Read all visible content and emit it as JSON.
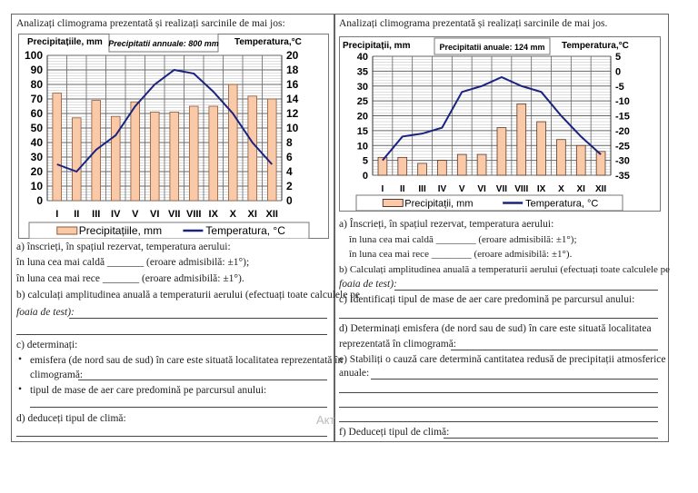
{
  "left": {
    "title": "Analizați climograma prezentată și realizați sarcinile de mai jos:",
    "a_intro": "a) înscrieți, în spațiul rezervat, temperatura aerului:",
    "a_warm": "în luna cea mai caldă _______ (eroare admisibilă: ±1°);",
    "a_cold": "în luna cea mai rece    _______ (eroare admisibilă: ±1°).",
    "b_1": "b) calculați amplitudinea anuală a temperaturii aerului (efectuați toate calculele pe",
    "b_2": "foaia de test):",
    "c_intro": "c) determinați:",
    "c_b1_1": "emisfera (de nord sau de sud) în care este situată localitatea reprezentată în",
    "c_b1_2": "climogramă:",
    "c_b2": "tipul de mase de aer care predomină pe parcursul anului:",
    "d": "d) deduceți tipul de climă:",
    "watermark": "Акт"
  },
  "right": {
    "title": "Analizați climograma prezentată și realizați sarcinile de mai jos.",
    "a_intro": "a) Înscrieți, în spațiul rezervat, temperatura aerului:",
    "a_warm": "în luna cea mai caldă ________ (eroare admisibilă: ±1°);",
    "a_cold": "în luna cea mai rece    ________ (eroare admisibilă: ±1°).",
    "b_1": "b) Calculați amplitudinea anuală a temperaturii aerului (efectuați toate calculele pe",
    "b_2": "foaia de test):",
    "c": "c) Identificați tipul de mase de aer care predomină pe parcursul anului:",
    "d_1": "d) Determinați emisfera (de nord sau de sud) în care este situată localitatea",
    "d_2": "reprezentată în climogramă:",
    "e_1": "e) Stabiliți o cauză care determină cantitatea redusă de precipitații atmosferice",
    "e_2": "anuale:",
    "f": "f) Deduceți tipul de climă:"
  },
  "chart_data": [
    {
      "type": "bar+line",
      "left_axis_label": "Precipitațiile, mm",
      "right_axis_label": "Temperatura,°C",
      "annotation": "Precipitatii annuale: 800 mm",
      "categories": [
        "I",
        "II",
        "III",
        "IV",
        "V",
        "VI",
        "VII",
        "VIII",
        "IX",
        "X",
        "XI",
        "XII"
      ],
      "series": [
        {
          "name": "Precipitațiile, mm",
          "type": "bar",
          "axis": "left",
          "values": [
            74,
            57,
            69,
            58,
            68,
            61,
            61,
            65,
            65,
            80,
            72,
            70
          ]
        },
        {
          "name": "Temperatura, °C",
          "type": "line",
          "axis": "right",
          "values": [
            5,
            4,
            7,
            9,
            13,
            16,
            18,
            17.5,
            15,
            12,
            8,
            5
          ]
        }
      ],
      "ylim_left": [
        0,
        100
      ],
      "yticks_left": [
        0,
        10,
        20,
        30,
        40,
        50,
        60,
        70,
        80,
        90,
        100
      ],
      "ylim_right": [
        0,
        20
      ],
      "yticks_right": [
        0,
        2,
        4,
        6,
        8,
        10,
        12,
        14,
        16,
        18,
        20
      ],
      "grid": true,
      "legend": "bottom",
      "colors": {
        "bar": "#f9c9a8",
        "bar_edge": "#8a5a3a",
        "line": "#1a237e"
      }
    },
    {
      "type": "bar+line",
      "left_axis_label": "Precipitații, mm",
      "right_axis_label": "Temperatura,°C",
      "annotation": "Precipitatii anuale: 124 mm",
      "categories": [
        "I",
        "II",
        "III",
        "IV",
        "V",
        "VI",
        "VII",
        "VIII",
        "IX",
        "X",
        "XI",
        "XII"
      ],
      "series": [
        {
          "name": "Precipitații, mm",
          "type": "bar",
          "axis": "left",
          "values": [
            6,
            6,
            4,
            5,
            7,
            7,
            16,
            24,
            18,
            12,
            10,
            8
          ]
        },
        {
          "name": "Temperatura, °C",
          "type": "line",
          "axis": "right",
          "values": [
            -30,
            -22,
            -21,
            -19,
            -7,
            -5,
            -2,
            -5,
            -7,
            -15,
            -22,
            -28
          ]
        }
      ],
      "ylim_left": [
        0,
        40
      ],
      "yticks_left": [
        0,
        5,
        10,
        15,
        20,
        25,
        30,
        35,
        40
      ],
      "ylim_right": [
        -35,
        5
      ],
      "yticks_right": [
        -35,
        -30,
        -25,
        -20,
        -15,
        -10,
        -5,
        0,
        5
      ],
      "grid": true,
      "legend": "bottom",
      "colors": {
        "bar": "#f9c9a8",
        "bar_edge": "#5a3a2a",
        "line": "#1a237e"
      }
    }
  ]
}
